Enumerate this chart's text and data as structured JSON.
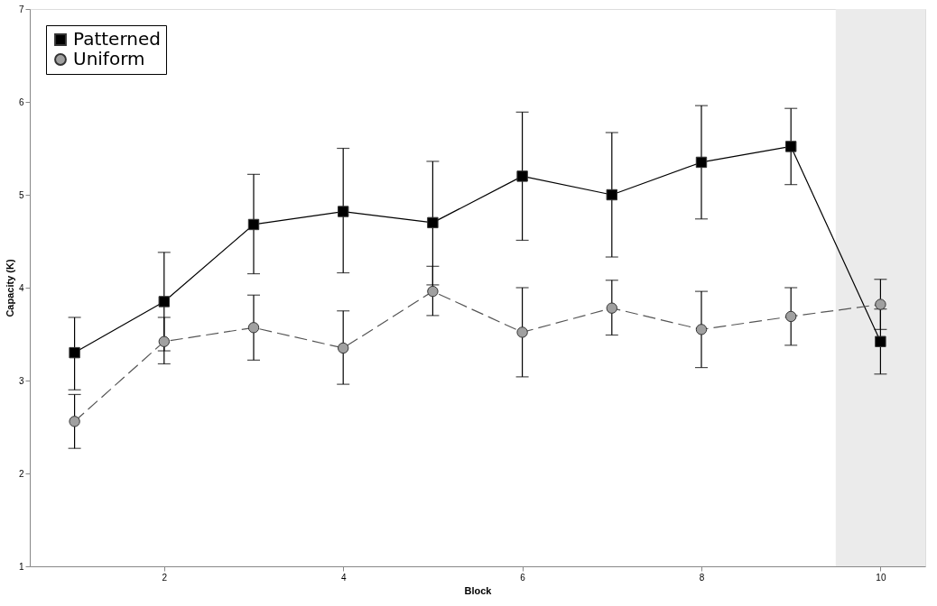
{
  "chart_data": {
    "type": "line",
    "xlabel": "Block",
    "ylabel": "Capacity (K)",
    "x": [
      1,
      2,
      3,
      4,
      5,
      6,
      7,
      8,
      9,
      10
    ],
    "xlim": [
      0.5,
      10.5
    ],
    "xticks": [
      2,
      4,
      6,
      8,
      10
    ],
    "ylim": [
      1,
      7
    ],
    "yticks": [
      1,
      2,
      3,
      4,
      5,
      6,
      7
    ],
    "grid": false,
    "legend": "top left",
    "series": [
      {
        "name": "Patterned",
        "color": "#000000",
        "marker": "square",
        "line_style": "solid",
        "values": [
          3.3,
          3.85,
          4.68,
          4.82,
          4.7,
          5.2,
          5.0,
          5.35,
          5.52,
          3.42
        ],
        "errors": [
          [
            2.9,
            3.68
          ],
          [
            3.32,
            4.38
          ],
          [
            4.15,
            5.22
          ],
          [
            4.16,
            5.5
          ],
          [
            4.03,
            5.36
          ],
          [
            4.51,
            5.89
          ],
          [
            4.33,
            5.67
          ],
          [
            4.74,
            5.96
          ],
          [
            5.11,
            5.93
          ],
          [
            3.07,
            3.77
          ]
        ]
      },
      {
        "name": "Uniform",
        "color": "#a0a0a0",
        "marker": "circle",
        "line_style": "dashed",
        "values": [
          2.56,
          3.42,
          3.57,
          3.35,
          3.96,
          3.52,
          3.78,
          3.55,
          3.69,
          3.82
        ],
        "errors": [
          [
            2.27,
            2.85
          ],
          [
            3.18,
            3.68
          ],
          [
            3.22,
            3.92
          ],
          [
            2.96,
            3.75
          ],
          [
            3.7,
            4.23
          ],
          [
            3.04,
            4.0
          ],
          [
            3.49,
            4.08
          ],
          [
            3.14,
            3.96
          ],
          [
            3.38,
            4.0
          ],
          [
            3.55,
            4.09
          ]
        ]
      }
    ],
    "bands": [
      {
        "axis": "x",
        "from": 9.5,
        "to": 10.5,
        "color": "#ebebeb"
      }
    ]
  }
}
